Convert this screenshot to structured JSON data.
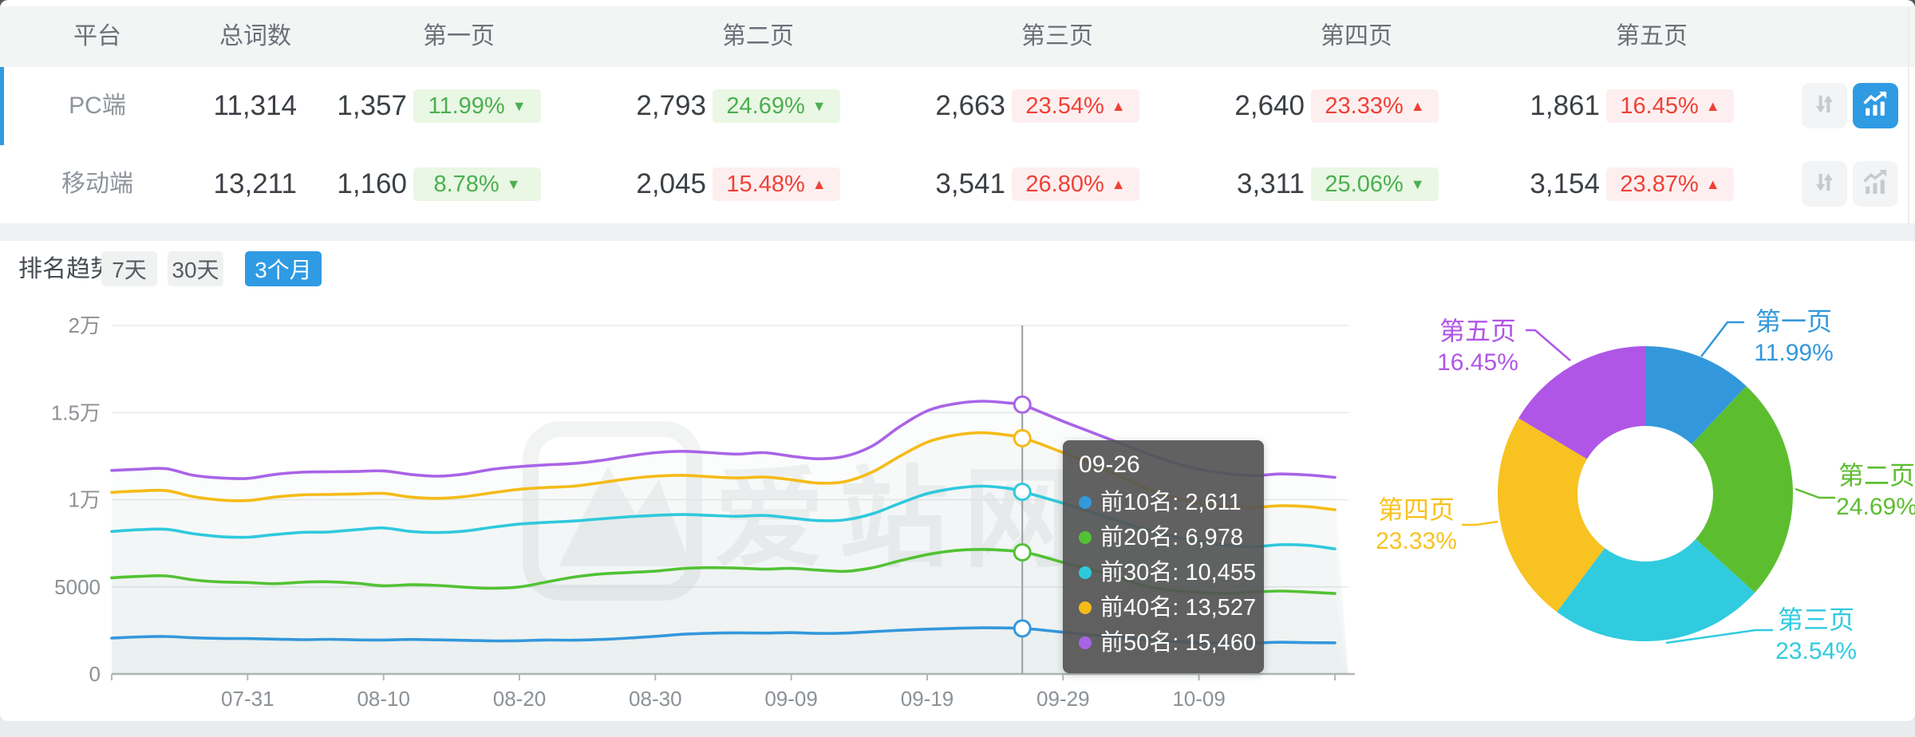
{
  "table": {
    "headers": [
      "平台",
      "总词数",
      "第一页",
      "第二页",
      "第三页",
      "第四页",
      "第五页"
    ],
    "rows": [
      {
        "platform": "PC端",
        "total": "11,314",
        "selected": true,
        "pages": [
          {
            "count": "1,357",
            "pct": "11.99%",
            "dir": "down",
            "tone": "green"
          },
          {
            "count": "2,793",
            "pct": "24.69%",
            "dir": "down",
            "tone": "green"
          },
          {
            "count": "2,663",
            "pct": "23.54%",
            "dir": "up",
            "tone": "red"
          },
          {
            "count": "2,640",
            "pct": "23.33%",
            "dir": "up",
            "tone": "red"
          },
          {
            "count": "1,861",
            "pct": "16.45%",
            "dir": "up",
            "tone": "red"
          }
        ],
        "actions": {
          "sort_active": false,
          "chart_active": true
        }
      },
      {
        "platform": "移动端",
        "total": "13,211",
        "selected": false,
        "pages": [
          {
            "count": "1,160",
            "pct": "8.78%",
            "dir": "down",
            "tone": "green"
          },
          {
            "count": "2,045",
            "pct": "15.48%",
            "dir": "up",
            "tone": "red"
          },
          {
            "count": "3,541",
            "pct": "26.80%",
            "dir": "up",
            "tone": "red"
          },
          {
            "count": "3,311",
            "pct": "25.06%",
            "dir": "down",
            "tone": "green"
          },
          {
            "count": "3,154",
            "pct": "23.87%",
            "dir": "up",
            "tone": "red"
          }
        ],
        "actions": {
          "sort_active": false,
          "chart_active": false
        }
      }
    ]
  },
  "trend": {
    "title": "排名趋势",
    "tabs": [
      {
        "label": "7天",
        "active": false
      },
      {
        "label": "30天",
        "active": false
      },
      {
        "label": "3个月",
        "active": true
      }
    ]
  },
  "watermark": "爱站网",
  "colors": {
    "accent_blue": "#2f9be3",
    "down_green": "#4caf50",
    "green_badge_bg": "#e9f7e4",
    "up_red": "#ef4136",
    "red_badge_bg": "#fdeff0",
    "tooltip_bg": "#545454"
  },
  "tooltip": {
    "title": "09-26",
    "rows": [
      {
        "label": "前10名",
        "value": "2,611",
        "color": "#3398db"
      },
      {
        "label": "前20名",
        "value": "6,978",
        "color": "#52c234"
      },
      {
        "label": "前30名",
        "value": "10,455",
        "color": "#2fc9dd"
      },
      {
        "label": "前40名",
        "value": "13,527",
        "color": "#f5bb17"
      },
      {
        "label": "前50名",
        "value": "15,460",
        "color": "#a964e6"
      }
    ]
  },
  "chart_data": [
    {
      "type": "line",
      "title": "排名趋势 (3个月)",
      "xlabel": "",
      "ylabel": "",
      "ylim": [
        0,
        20000
      ],
      "grid": true,
      "y_ticks": [
        {
          "v": 0,
          "label": "0"
        },
        {
          "v": 5000,
          "label": "5000"
        },
        {
          "v": 10000,
          "label": "1万"
        },
        {
          "v": 15000,
          "label": "1.5万"
        },
        {
          "v": 20000,
          "label": "2万"
        }
      ],
      "x_start_date": "07-21",
      "x_range_days": [
        0,
        91
      ],
      "x_tick_days": [
        10,
        20,
        30,
        40,
        50,
        60,
        70,
        80
      ],
      "x_tick_labels": [
        "07-31",
        "08-10",
        "08-20",
        "08-30",
        "09-09",
        "09-19",
        "09-29",
        "10-09"
      ],
      "crosshair_day": 67,
      "crosshair_date": "09-26",
      "days": [
        0,
        2,
        4,
        6,
        8,
        10,
        12,
        14,
        16,
        18,
        20,
        22,
        24,
        26,
        28,
        30,
        32,
        34,
        36,
        38,
        40,
        42,
        44,
        46,
        48,
        50,
        52,
        54,
        56,
        58,
        60,
        62,
        64,
        66,
        67,
        68,
        70,
        72,
        74,
        76,
        78,
        80,
        82,
        84,
        86,
        88,
        90
      ],
      "series": [
        {
          "name": "前10名",
          "color": "#3398db",
          "values": [
            2060,
            2130,
            2150,
            2080,
            2040,
            2030,
            2000,
            1970,
            1990,
            1960,
            1950,
            1980,
            1960,
            1930,
            1900,
            1910,
            1950,
            1940,
            1980,
            2060,
            2160,
            2280,
            2340,
            2360,
            2350,
            2370,
            2330,
            2350,
            2430,
            2510,
            2570,
            2620,
            2650,
            2640,
            2611,
            2560,
            2400,
            2250,
            2100,
            1980,
            1880,
            1800,
            1760,
            1780,
            1820,
            1800,
            1790
          ]
        },
        {
          "name": "前20名",
          "color": "#52c234",
          "values": [
            5520,
            5600,
            5630,
            5400,
            5280,
            5250,
            5180,
            5270,
            5290,
            5210,
            5060,
            5120,
            5080,
            4980,
            4920,
            5000,
            5280,
            5560,
            5740,
            5820,
            5900,
            6050,
            6100,
            6080,
            6020,
            6060,
            5960,
            5890,
            6100,
            6500,
            6850,
            7080,
            7150,
            7080,
            6978,
            6840,
            6400,
            6000,
            5550,
            5050,
            4800,
            4680,
            4620,
            4700,
            4760,
            4700,
            4620
          ]
        },
        {
          "name": "前30名",
          "color": "#2fc9dd",
          "values": [
            8180,
            8280,
            8300,
            8050,
            7880,
            7850,
            8000,
            8130,
            8150,
            8280,
            8380,
            8180,
            8120,
            8200,
            8420,
            8600,
            8700,
            8780,
            8900,
            9020,
            9100,
            9150,
            9100,
            9050,
            9100,
            8950,
            8800,
            8850,
            9200,
            9800,
            10350,
            10650,
            10780,
            10650,
            10455,
            10250,
            9800,
            9300,
            8800,
            8300,
            7900,
            7600,
            7380,
            7300,
            7420,
            7380,
            7180
          ]
        },
        {
          "name": "前40名",
          "color": "#f5bb17",
          "values": [
            10420,
            10500,
            10520,
            10180,
            9980,
            9950,
            10150,
            10280,
            10300,
            10330,
            10360,
            10150,
            10080,
            10180,
            10400,
            10600,
            10700,
            10780,
            10980,
            11200,
            11350,
            11400,
            11320,
            11250,
            11300,
            11150,
            10950,
            11050,
            11600,
            12500,
            13300,
            13700,
            13850,
            13700,
            13527,
            13300,
            12700,
            12100,
            11400,
            10700,
            10150,
            9800,
            9600,
            9550,
            9650,
            9600,
            9420
          ]
        },
        {
          "name": "前50名",
          "color": "#a964e6",
          "values": [
            11680,
            11750,
            11780,
            11400,
            11250,
            11220,
            11450,
            11580,
            11600,
            11620,
            11650,
            11450,
            11350,
            11480,
            11750,
            11900,
            12000,
            12080,
            12250,
            12500,
            12700,
            12780,
            12700,
            12620,
            12700,
            12500,
            12350,
            12500,
            13100,
            14200,
            15100,
            15500,
            15650,
            15550,
            15460,
            15150,
            14500,
            13900,
            13300,
            12700,
            12150,
            11750,
            11500,
            11380,
            11480,
            11420,
            11280
          ]
        }
      ]
    },
    {
      "type": "pie",
      "inner_radius_pct": 46,
      "slices": [
        {
          "name": "第一页",
          "pct": 11.99,
          "label": "11.99%",
          "color": "#3398db"
        },
        {
          "name": "第二页",
          "pct": 24.69,
          "label": "24.69%",
          "color": "#5cbe2f"
        },
        {
          "name": "第三页",
          "pct": 23.54,
          "label": "23.54%",
          "color": "#30cbdf"
        },
        {
          "name": "第四页",
          "pct": 23.33,
          "label": "23.33%",
          "color": "#f8c220"
        },
        {
          "name": "第五页",
          "pct": 16.45,
          "label": "16.45%",
          "color": "#af56e6"
        }
      ]
    }
  ]
}
